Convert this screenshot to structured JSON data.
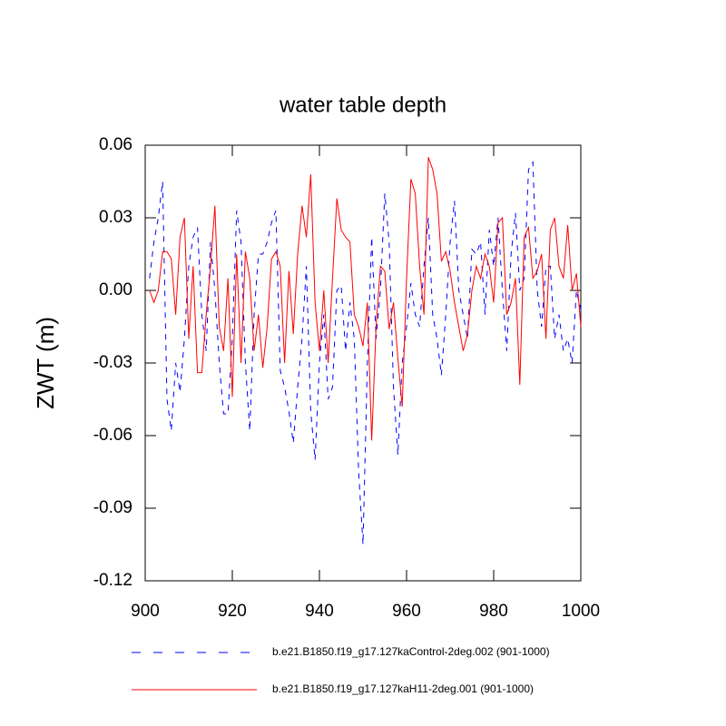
{
  "chart_data": {
    "type": "line",
    "title": "water table depth",
    "y_label": "ZWT  (m)",
    "xlim": [
      900,
      1000
    ],
    "xticks": [
      900,
      920,
      940,
      960,
      980,
      1000
    ],
    "ylim": [
      -0.12,
      0.06
    ],
    "yticks": [
      0.06,
      0.03,
      {
        "value": 0,
        "label": "0.00"
      },
      -0.03,
      -0.06,
      -0.09,
      -0.12
    ],
    "x": [
      901,
      902,
      903,
      904,
      905,
      906,
      907,
      908,
      909,
      910,
      911,
      912,
      913,
      914,
      915,
      916,
      917,
      918,
      919,
      920,
      921,
      922,
      923,
      924,
      925,
      926,
      927,
      928,
      929,
      930,
      931,
      932,
      933,
      934,
      935,
      936,
      937,
      938,
      939,
      940,
      941,
      942,
      943,
      944,
      945,
      946,
      947,
      948,
      949,
      950,
      951,
      952,
      953,
      954,
      955,
      956,
      957,
      958,
      959,
      960,
      961,
      962,
      963,
      964,
      965,
      966,
      967,
      968,
      969,
      970,
      971,
      972,
      973,
      974,
      975,
      976,
      977,
      978,
      979,
      980,
      981,
      982,
      983,
      984,
      985,
      986,
      987,
      988,
      989,
      990,
      991,
      992,
      993,
      994,
      995,
      996,
      997,
      998,
      999,
      1000
    ],
    "series": [
      {
        "name": "b.e21.B1850.f19_g17.127kaControl-2deg.002 (901-1000)",
        "color": "#0000ff",
        "dash": true,
        "values": [
          0.005,
          0.02,
          0.03,
          0.045,
          -0.045,
          -0.058,
          -0.03,
          -0.042,
          -0.02,
          0.01,
          0.022,
          0.026,
          -0.01,
          -0.025,
          0.02,
          0.0,
          -0.03,
          -0.051,
          -0.051,
          -0.02,
          0.033,
          0.02,
          -0.03,
          -0.058,
          -0.01,
          0.015,
          0.015,
          0.02,
          0.028,
          0.033,
          -0.033,
          -0.04,
          -0.05,
          -0.063,
          -0.04,
          -0.02,
          0.01,
          -0.05,
          -0.07,
          -0.03,
          -0.01,
          -0.045,
          -0.04,
          0.0,
          0.002,
          -0.025,
          -0.005,
          -0.02,
          -0.075,
          -0.105,
          -0.03,
          0.022,
          -0.02,
          0.0,
          0.04,
          0.02,
          -0.04,
          -0.068,
          -0.03,
          -0.015,
          0.003,
          -0.01,
          -0.015,
          0.01,
          0.03,
          -0.01,
          -0.02,
          -0.035,
          -0.01,
          0.02,
          0.037,
          0.0,
          -0.01,
          -0.02,
          0.017,
          0.015,
          0.02,
          -0.01,
          0.025,
          0.01,
          0.03,
          0.0,
          -0.025,
          0.015,
          0.032,
          0.0,
          0.005,
          0.05,
          0.053,
          0.0,
          -0.015,
          0.01,
          0.01,
          -0.02,
          -0.01,
          -0.025,
          -0.02,
          -0.03,
          0.0,
          -0.008
        ]
      },
      {
        "name": "b.e21.B1850.f19_g17.127kaH11-2deg.001 (901-1000)",
        "color": "#ff0000",
        "dash": false,
        "values": [
          0.0,
          -0.005,
          0.0,
          0.016,
          0.016,
          0.013,
          -0.01,
          0.022,
          0.03,
          -0.02,
          0.01,
          -0.034,
          -0.034,
          -0.01,
          0.01,
          0.035,
          -0.015,
          -0.025,
          0.005,
          -0.044,
          0.015,
          -0.03,
          0.016,
          0.005,
          -0.025,
          -0.01,
          -0.032,
          -0.015,
          0.013,
          0.016,
          0.01,
          -0.03,
          0.008,
          -0.018,
          0.015,
          0.035,
          0.022,
          0.048,
          -0.005,
          -0.025,
          0.0,
          -0.03,
          0.005,
          0.038,
          0.025,
          0.022,
          0.02,
          -0.01,
          -0.015,
          -0.023,
          -0.005,
          -0.062,
          -0.015,
          0.01,
          0.008,
          -0.016,
          -0.005,
          -0.028,
          -0.048,
          0.005,
          0.046,
          0.04,
          0.01,
          -0.01,
          0.055,
          0.05,
          0.04,
          0.012,
          0.016,
          0.008,
          -0.005,
          -0.015,
          -0.025,
          -0.018,
          0.0,
          0.01,
          0.005,
          0.015,
          0.01,
          -0.005,
          0.028,
          0.03,
          -0.01,
          -0.005,
          0.005,
          -0.039,
          0.022,
          0.026,
          0.005,
          0.008,
          0.015,
          -0.02,
          0.025,
          0.03,
          0.01,
          0.005,
          0.027,
          0.0,
          0.007,
          -0.015
        ]
      }
    ]
  }
}
